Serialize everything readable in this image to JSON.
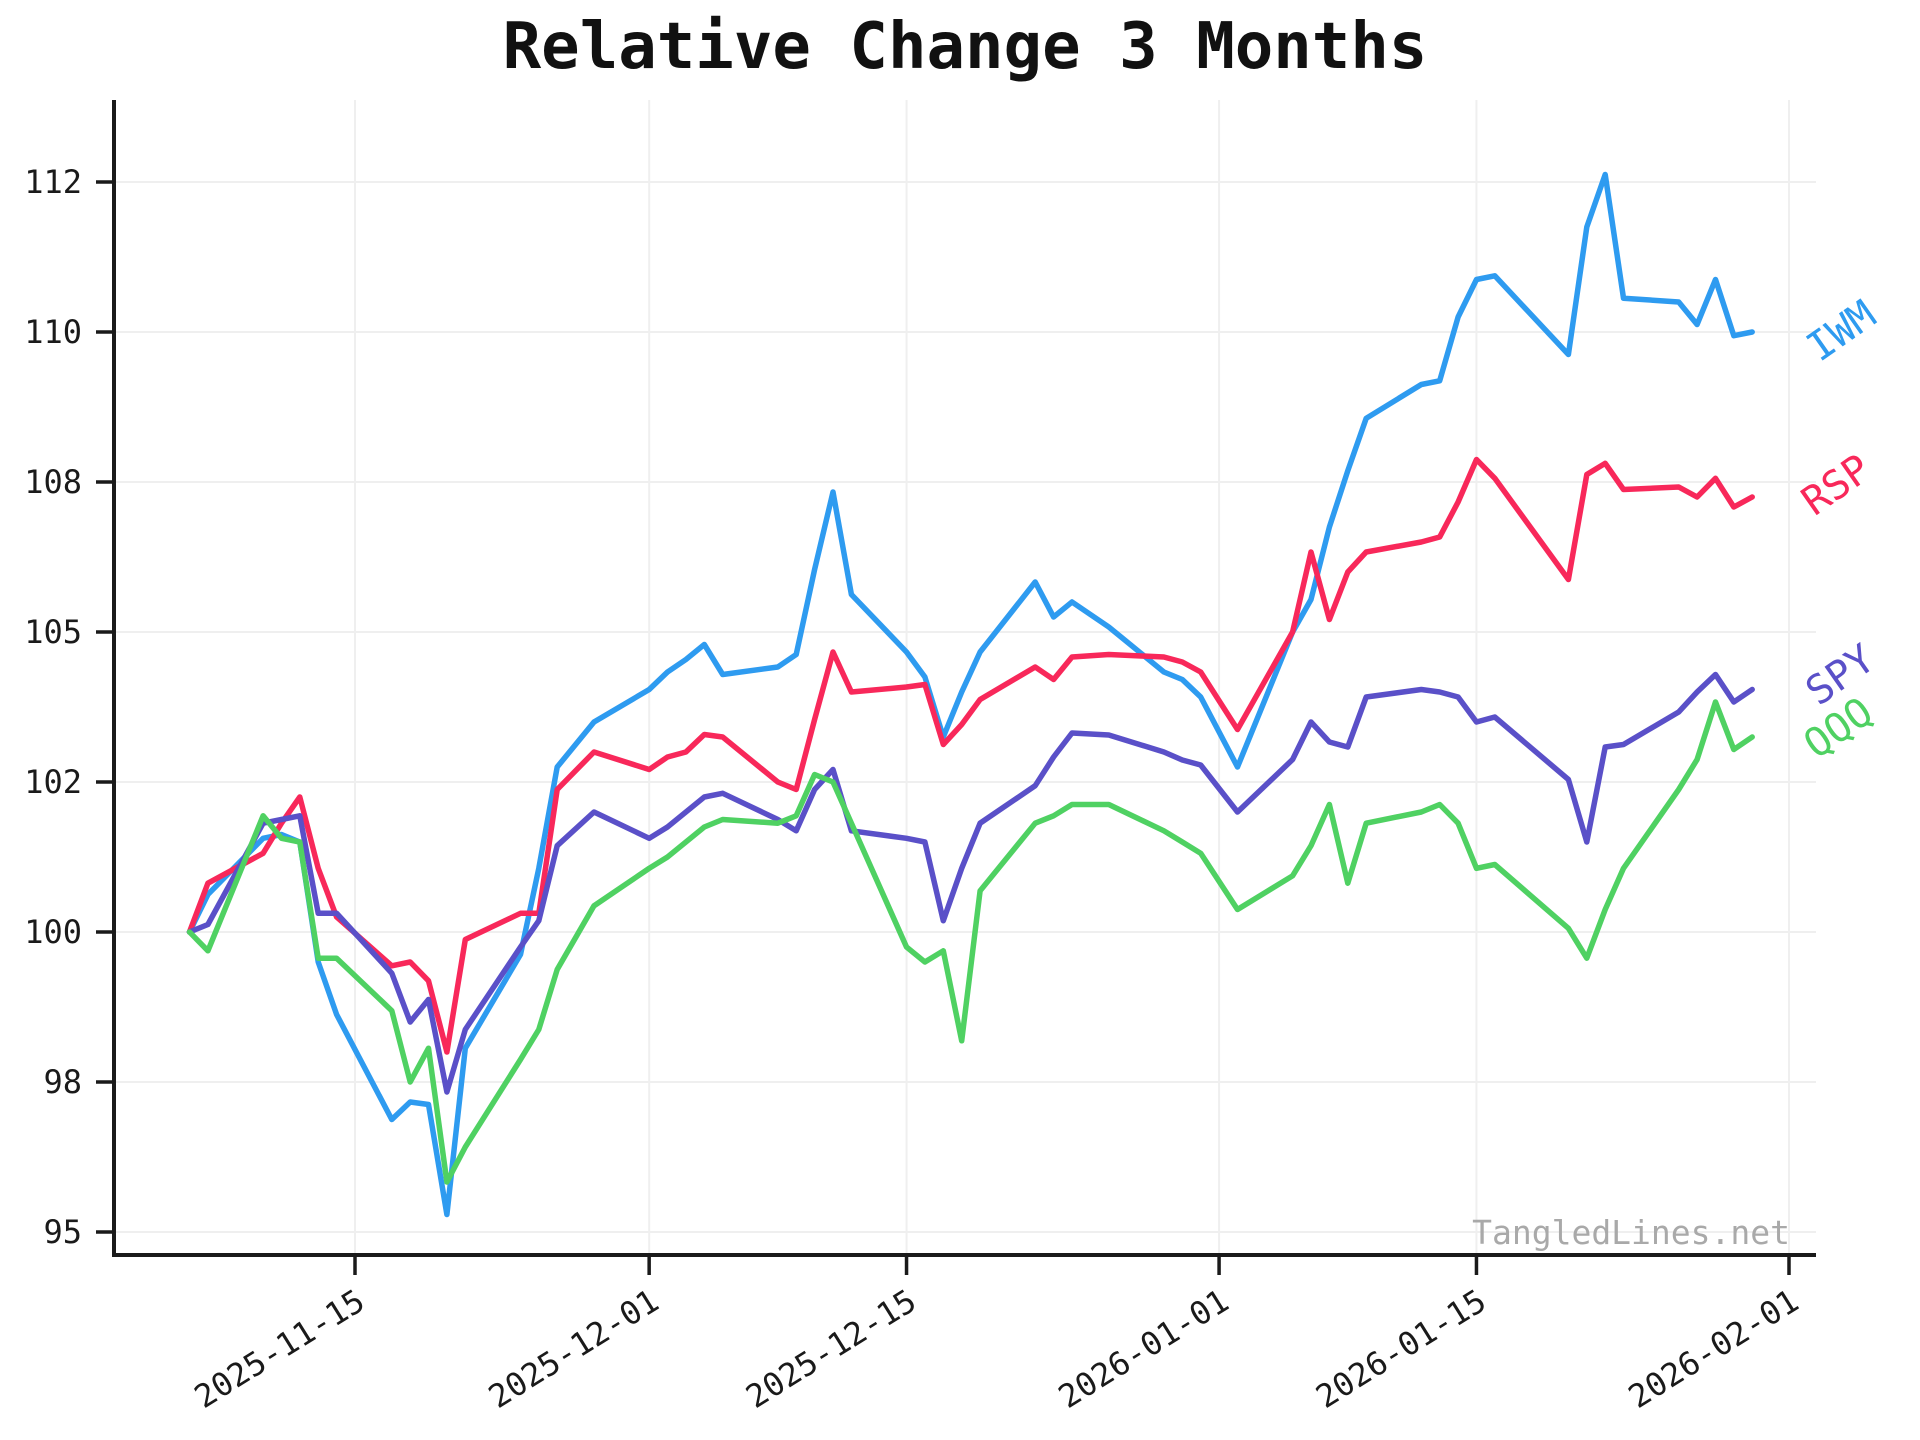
{
  "title": "Relative Change 3 Months",
  "watermark": "TangledLines.net",
  "chart_data": {
    "type": "line",
    "title": "Relative Change 3 Months",
    "xlabel": "",
    "ylabel": "",
    "grid": true,
    "legend_position": "right-end-of-lines",
    "yticks": [
      95,
      98,
      100,
      102,
      105,
      108,
      110,
      112
    ],
    "xticks": [
      "2025-11-15",
      "2025-12-01",
      "2025-12-15",
      "2026-01-01",
      "2026-01-15",
      "2026-02-01"
    ],
    "x": [
      "2025-11-06",
      "2025-11-07",
      "2025-11-10",
      "2025-11-11",
      "2025-11-12",
      "2025-11-13",
      "2025-11-14",
      "2025-11-17",
      "2025-11-18",
      "2025-11-19",
      "2025-11-20",
      "2025-11-21",
      "2025-11-24",
      "2025-11-25",
      "2025-11-26",
      "2025-11-28",
      "2025-12-01",
      "2025-12-02",
      "2025-12-03",
      "2025-12-04",
      "2025-12-05",
      "2025-12-08",
      "2025-12-09",
      "2025-12-10",
      "2025-12-11",
      "2025-12-12",
      "2025-12-15",
      "2025-12-16",
      "2025-12-17",
      "2025-12-18",
      "2025-12-19",
      "2025-12-22",
      "2025-12-23",
      "2025-12-24",
      "2025-12-26",
      "2025-12-29",
      "2025-12-30",
      "2025-12-31",
      "2026-01-02",
      "2026-01-05",
      "2026-01-06",
      "2026-01-07",
      "2026-01-08",
      "2026-01-09",
      "2026-01-12",
      "2026-01-13",
      "2026-01-14",
      "2026-01-15",
      "2026-01-16",
      "2026-01-20",
      "2026-01-21",
      "2026-01-22",
      "2026-01-23",
      "2026-01-26",
      "2026-01-27",
      "2026-01-28",
      "2026-01-29",
      "2026-01-30"
    ],
    "series": [
      {
        "name": "IWM",
        "color": "#2E9BF0",
        "values": [
          100.0,
          100.5,
          101.25,
          101.3,
          101.2,
          99.6,
          98.9,
          97.25,
          97.6,
          97.55,
          95.35,
          98.45,
          99.7,
          100.85,
          102.3,
          103.2,
          103.85,
          104.2,
          104.45,
          104.75,
          104.15,
          104.3,
          104.55,
          106.25,
          107.8,
          105.75,
          104.6,
          104.1,
          102.9,
          103.8,
          104.6,
          106.0,
          105.3,
          105.6,
          105.1,
          104.2,
          104.05,
          103.7,
          102.3,
          105.0,
          105.65,
          107.1,
          108.15,
          108.85,
          109.3,
          109.35,
          110.2,
          110.7,
          110.75,
          109.7,
          111.4,
          112.1,
          110.45,
          110.4,
          110.1,
          110.7,
          109.95,
          110.0
        ]
      },
      {
        "name": "RSP",
        "color": "#F8285A",
        "values": [
          100.0,
          100.65,
          101.05,
          101.45,
          101.8,
          100.85,
          100.2,
          99.55,
          99.6,
          99.35,
          98.4,
          99.9,
          100.25,
          100.25,
          101.9,
          102.6,
          102.25,
          102.5,
          102.6,
          102.95,
          102.9,
          102.0,
          101.9,
          103.25,
          104.6,
          103.8,
          103.9,
          103.95,
          102.75,
          103.15,
          103.65,
          104.3,
          104.05,
          104.5,
          104.55,
          104.5,
          104.4,
          104.2,
          103.05,
          105.0,
          106.6,
          105.25,
          106.2,
          106.6,
          106.8,
          106.9,
          107.6,
          108.3,
          108.05,
          106.05,
          108.1,
          108.25,
          107.85,
          107.9,
          107.7,
          108.05,
          107.5,
          107.7
        ]
      },
      {
        "name": "SPY",
        "color": "#5A50C8",
        "values": [
          100.0,
          100.1,
          101.45,
          101.5,
          101.55,
          100.25,
          100.25,
          99.45,
          98.8,
          99.1,
          97.8,
          98.7,
          99.8,
          100.15,
          101.15,
          101.6,
          101.25,
          101.4,
          101.6,
          101.8,
          101.85,
          101.5,
          101.35,
          101.9,
          102.25,
          101.35,
          101.25,
          101.2,
          100.15,
          100.85,
          101.45,
          101.95,
          102.5,
          102.98,
          102.94,
          102.6,
          102.44,
          102.34,
          101.6,
          102.45,
          103.2,
          102.8,
          102.7,
          103.7,
          103.85,
          103.8,
          103.7,
          103.2,
          103.3,
          102.05,
          101.2,
          102.7,
          102.75,
          103.4,
          103.8,
          104.15,
          103.6,
          103.85
        ]
      },
      {
        "name": "QQQ",
        "color": "#4FD162",
        "values": [
          100.0,
          99.75,
          101.55,
          101.25,
          101.2,
          99.65,
          99.65,
          98.95,
          98.0,
          98.45,
          96.0,
          96.7,
          98.3,
          98.7,
          99.5,
          100.35,
          100.85,
          101.0,
          101.2,
          101.4,
          101.5,
          101.45,
          101.55,
          102.15,
          102.0,
          101.45,
          99.8,
          99.6,
          99.75,
          98.55,
          100.55,
          101.45,
          101.55,
          101.7,
          101.7,
          101.35,
          101.2,
          101.05,
          100.3,
          100.75,
          101.15,
          101.7,
          100.65,
          101.45,
          101.6,
          101.7,
          101.45,
          100.85,
          100.9,
          100.05,
          99.65,
          100.3,
          100.85,
          101.9,
          102.45,
          103.6,
          102.65,
          102.9
        ]
      }
    ],
    "colors": {
      "grid": "#EFEFEF",
      "axis": "#1A1A1A",
      "tick_label": "#1A1A1A",
      "watermark": "#A9A9A9"
    }
  }
}
